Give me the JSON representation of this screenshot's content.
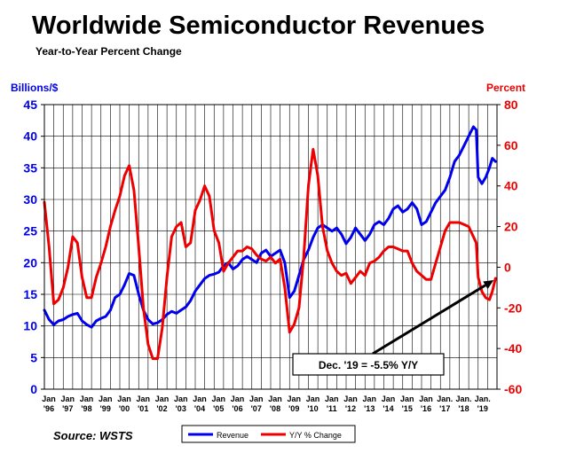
{
  "chart_data": {
    "type": "line",
    "title": "Worldwide Semiconductor Revenues",
    "subtitle": "Year-to-Year Percent Change",
    "ylabel_left": "Billions/$",
    "ylabel_right": "Percent",
    "source": "Source: WSTS",
    "left_axis": {
      "min": 0,
      "max": 45,
      "ticks": [
        "0",
        "5",
        "10",
        "15",
        "20",
        "25",
        "30",
        "35",
        "40",
        "45"
      ],
      "color": "#0000ee"
    },
    "right_axis": {
      "min": -60,
      "max": 80,
      "ticks": [
        "-60",
        "-40",
        "-20",
        "0",
        "20",
        "40",
        "60",
        "80"
      ],
      "color": "#ee0000"
    },
    "x_axis": {
      "min": 1996.0,
      "max": 2020.0,
      "ticks": [
        {
          "year": 1996,
          "top": "Jan",
          "bottom": "'96"
        },
        {
          "year": 1997,
          "top": "Jan",
          "bottom": "'97"
        },
        {
          "year": 1998,
          "top": "Jan",
          "bottom": "'98"
        },
        {
          "year": 1999,
          "top": "Jan",
          "bottom": "'99"
        },
        {
          "year": 2000,
          "top": "Jan",
          "bottom": "'00"
        },
        {
          "year": 2001,
          "top": "Jan",
          "bottom": "'01"
        },
        {
          "year": 2002,
          "top": "Jan",
          "bottom": "'02"
        },
        {
          "year": 2003,
          "top": "Jan",
          "bottom": "'03"
        },
        {
          "year": 2004,
          "top": "Jan",
          "bottom": "'04"
        },
        {
          "year": 2005,
          "top": "Jan",
          "bottom": "'05"
        },
        {
          "year": 2006,
          "top": "Jan",
          "bottom": "'06"
        },
        {
          "year": 2007,
          "top": "Jan",
          "bottom": "'07"
        },
        {
          "year": 2008,
          "top": "Jan",
          "bottom": "'08"
        },
        {
          "year": 2009,
          "top": "Jan",
          "bottom": "'09"
        },
        {
          "year": 2010,
          "top": "Jan",
          "bottom": "'10"
        },
        {
          "year": 2011,
          "top": "Jan",
          "bottom": "'11"
        },
        {
          "year": 2012,
          "top": "Jan",
          "bottom": "'12"
        },
        {
          "year": 2013,
          "top": "Jan",
          "bottom": "'13"
        },
        {
          "year": 2014,
          "top": "Jan",
          "bottom": "'14"
        },
        {
          "year": 2015,
          "top": "Jan",
          "bottom": "'15"
        },
        {
          "year": 2016,
          "top": "Jan",
          "bottom": "'16"
        },
        {
          "year": 2017,
          "top": "Jan.",
          "bottom": "'17"
        },
        {
          "year": 2018,
          "top": "Jan.",
          "bottom": "'18"
        },
        {
          "year": 2019,
          "top": "Jan.",
          "bottom": "'19"
        }
      ]
    },
    "grid": true,
    "legend": {
      "position": "bottom-center",
      "entries": [
        "Revenue",
        "Y/Y % Change"
      ]
    },
    "series": [
      {
        "name": "Revenue",
        "axis": "left",
        "color": "#0000ee",
        "points": [
          [
            1996.0,
            12.5
          ],
          [
            1996.25,
            11.0
          ],
          [
            1996.5,
            10.2
          ],
          [
            1996.75,
            10.8
          ],
          [
            1997.0,
            11.0
          ],
          [
            1997.25,
            11.5
          ],
          [
            1997.5,
            11.8
          ],
          [
            1997.75,
            12.0
          ],
          [
            1998.0,
            10.8
          ],
          [
            1998.25,
            10.2
          ],
          [
            1998.5,
            9.8
          ],
          [
            1998.75,
            10.8
          ],
          [
            1999.0,
            11.2
          ],
          [
            1999.25,
            11.5
          ],
          [
            1999.5,
            12.5
          ],
          [
            1999.75,
            14.5
          ],
          [
            2000.0,
            15.0
          ],
          [
            2000.25,
            16.5
          ],
          [
            2000.5,
            18.3
          ],
          [
            2000.75,
            18.0
          ],
          [
            2001.0,
            15.0
          ],
          [
            2001.25,
            12.5
          ],
          [
            2001.5,
            11.0
          ],
          [
            2001.75,
            10.3
          ],
          [
            2002.0,
            10.5
          ],
          [
            2002.25,
            11.0
          ],
          [
            2002.5,
            11.8
          ],
          [
            2002.75,
            12.3
          ],
          [
            2003.0,
            12.0
          ],
          [
            2003.25,
            12.5
          ],
          [
            2003.5,
            13.0
          ],
          [
            2003.75,
            14.0
          ],
          [
            2004.0,
            15.5
          ],
          [
            2004.25,
            16.5
          ],
          [
            2004.5,
            17.5
          ],
          [
            2004.75,
            18.0
          ],
          [
            2005.0,
            18.2
          ],
          [
            2005.25,
            18.5
          ],
          [
            2005.5,
            19.5
          ],
          [
            2005.75,
            20.0
          ],
          [
            2006.0,
            19.0
          ],
          [
            2006.25,
            19.5
          ],
          [
            2006.5,
            20.5
          ],
          [
            2006.75,
            21.0
          ],
          [
            2007.0,
            20.5
          ],
          [
            2007.25,
            20.0
          ],
          [
            2007.5,
            21.5
          ],
          [
            2007.75,
            22.0
          ],
          [
            2008.0,
            21.0
          ],
          [
            2008.25,
            21.5
          ],
          [
            2008.5,
            22.0
          ],
          [
            2008.75,
            20.0
          ],
          [
            2009.0,
            14.5
          ],
          [
            2009.25,
            15.5
          ],
          [
            2009.5,
            18.0
          ],
          [
            2009.75,
            20.5
          ],
          [
            2010.0,
            22.0
          ],
          [
            2010.25,
            24.0
          ],
          [
            2010.5,
            25.5
          ],
          [
            2010.75,
            26.0
          ],
          [
            2011.0,
            25.5
          ],
          [
            2011.25,
            25.0
          ],
          [
            2011.5,
            25.5
          ],
          [
            2011.75,
            24.5
          ],
          [
            2012.0,
            23.0
          ],
          [
            2012.25,
            24.0
          ],
          [
            2012.5,
            25.5
          ],
          [
            2012.75,
            24.5
          ],
          [
            2013.0,
            23.5
          ],
          [
            2013.25,
            24.5
          ],
          [
            2013.5,
            26.0
          ],
          [
            2013.75,
            26.5
          ],
          [
            2014.0,
            26.0
          ],
          [
            2014.25,
            27.0
          ],
          [
            2014.5,
            28.5
          ],
          [
            2014.75,
            29.0
          ],
          [
            2015.0,
            28.0
          ],
          [
            2015.25,
            28.5
          ],
          [
            2015.5,
            29.5
          ],
          [
            2015.75,
            28.5
          ],
          [
            2016.0,
            26.0
          ],
          [
            2016.25,
            26.5
          ],
          [
            2016.5,
            28.0
          ],
          [
            2016.75,
            29.5
          ],
          [
            2017.0,
            30.5
          ],
          [
            2017.25,
            31.5
          ],
          [
            2017.5,
            33.5
          ],
          [
            2017.75,
            36.0
          ],
          [
            2018.0,
            37.0
          ],
          [
            2018.25,
            38.5
          ],
          [
            2018.5,
            40.0
          ],
          [
            2018.75,
            41.5
          ],
          [
            2018.9,
            41.0
          ],
          [
            2019.0,
            33.5
          ],
          [
            2019.2,
            32.5
          ],
          [
            2019.4,
            33.5
          ],
          [
            2019.6,
            35.0
          ],
          [
            2019.75,
            36.5
          ],
          [
            2019.92,
            36.0
          ]
        ]
      },
      {
        "name": "Y/Y % Change",
        "axis": "right",
        "color": "#ee0000",
        "points": [
          [
            1996.0,
            32
          ],
          [
            1996.25,
            10
          ],
          [
            1996.5,
            -18
          ],
          [
            1996.75,
            -16
          ],
          [
            1997.0,
            -10
          ],
          [
            1997.25,
            0
          ],
          [
            1997.5,
            15
          ],
          [
            1997.75,
            12
          ],
          [
            1998.0,
            -5
          ],
          [
            1998.25,
            -15
          ],
          [
            1998.5,
            -15
          ],
          [
            1998.75,
            -5
          ],
          [
            1999.0,
            2
          ],
          [
            1999.25,
            10
          ],
          [
            1999.5,
            20
          ],
          [
            1999.75,
            28
          ],
          [
            2000.0,
            35
          ],
          [
            2000.25,
            45
          ],
          [
            2000.5,
            50
          ],
          [
            2000.75,
            38
          ],
          [
            2001.0,
            10
          ],
          [
            2001.25,
            -20
          ],
          [
            2001.5,
            -38
          ],
          [
            2001.75,
            -45
          ],
          [
            2002.0,
            -45
          ],
          [
            2002.25,
            -30
          ],
          [
            2002.5,
            -5
          ],
          [
            2002.75,
            15
          ],
          [
            2003.0,
            20
          ],
          [
            2003.25,
            22
          ],
          [
            2003.5,
            10
          ],
          [
            2003.75,
            12
          ],
          [
            2004.0,
            28
          ],
          [
            2004.25,
            33
          ],
          [
            2004.5,
            40
          ],
          [
            2004.75,
            35
          ],
          [
            2005.0,
            18
          ],
          [
            2005.25,
            12
          ],
          [
            2005.5,
            -2
          ],
          [
            2005.75,
            2
          ],
          [
            2006.0,
            5
          ],
          [
            2006.25,
            8
          ],
          [
            2006.5,
            8
          ],
          [
            2006.75,
            10
          ],
          [
            2007.0,
            9
          ],
          [
            2007.25,
            6
          ],
          [
            2007.5,
            4
          ],
          [
            2007.75,
            3
          ],
          [
            2008.0,
            5
          ],
          [
            2008.25,
            2
          ],
          [
            2008.5,
            4
          ],
          [
            2008.75,
            -10
          ],
          [
            2009.0,
            -32
          ],
          [
            2009.25,
            -28
          ],
          [
            2009.5,
            -20
          ],
          [
            2009.75,
            5
          ],
          [
            2010.0,
            40
          ],
          [
            2010.25,
            58
          ],
          [
            2010.5,
            45
          ],
          [
            2010.75,
            20
          ],
          [
            2011.0,
            8
          ],
          [
            2011.25,
            2
          ],
          [
            2011.5,
            -2
          ],
          [
            2011.75,
            -4
          ],
          [
            2012.0,
            -3
          ],
          [
            2012.25,
            -8
          ],
          [
            2012.5,
            -5
          ],
          [
            2012.75,
            -2
          ],
          [
            2013.0,
            -4
          ],
          [
            2013.25,
            2
          ],
          [
            2013.5,
            3
          ],
          [
            2013.75,
            5
          ],
          [
            2014.0,
            8
          ],
          [
            2014.25,
            10
          ],
          [
            2014.5,
            10
          ],
          [
            2014.75,
            9
          ],
          [
            2015.0,
            8
          ],
          [
            2015.25,
            8
          ],
          [
            2015.5,
            2
          ],
          [
            2015.75,
            -2
          ],
          [
            2016.0,
            -4
          ],
          [
            2016.25,
            -6
          ],
          [
            2016.5,
            -6
          ],
          [
            2016.75,
            2
          ],
          [
            2017.0,
            10
          ],
          [
            2017.25,
            18
          ],
          [
            2017.5,
            22
          ],
          [
            2017.75,
            22
          ],
          [
            2018.0,
            22
          ],
          [
            2018.25,
            21
          ],
          [
            2018.5,
            20
          ],
          [
            2018.75,
            15
          ],
          [
            2018.9,
            12
          ],
          [
            2019.0,
            -5
          ],
          [
            2019.2,
            -12
          ],
          [
            2019.4,
            -15
          ],
          [
            2019.6,
            -16
          ],
          [
            2019.75,
            -12
          ],
          [
            2019.92,
            -5.5
          ]
        ]
      }
    ],
    "annotation": {
      "text": "Dec. '19 = -5.5% Y/Y",
      "target": [
        2019.92,
        -5.5
      ],
      "axis": "right"
    }
  }
}
